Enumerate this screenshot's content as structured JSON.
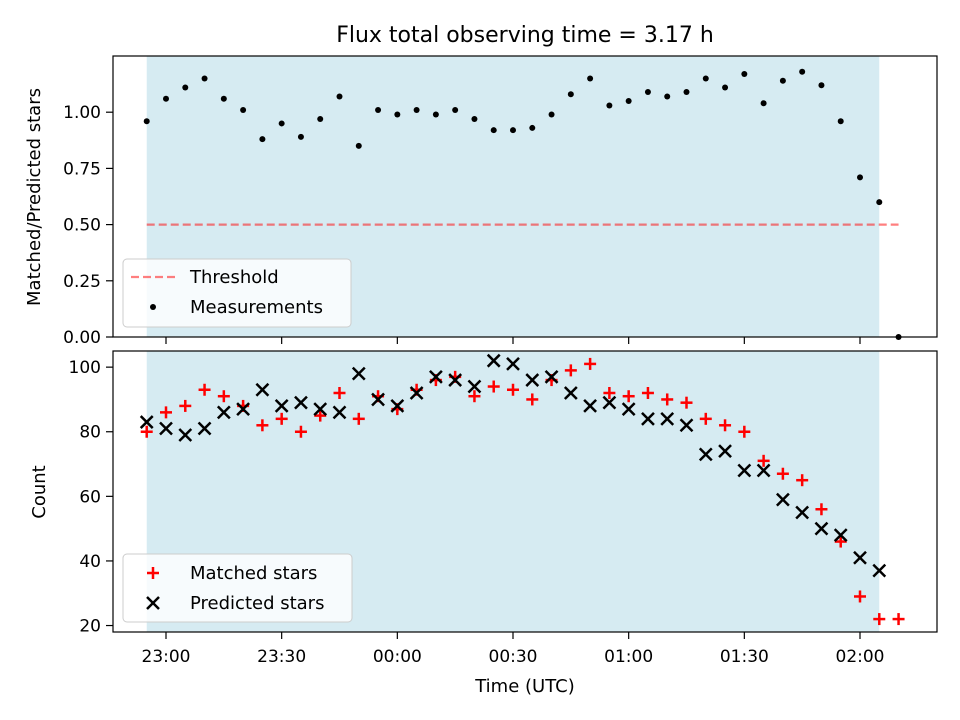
{
  "title": "Flux total observing time = 3.17 h",
  "colors": {
    "shade": "#add8e6",
    "threshold": "#ff0000",
    "matched": "#ff0000",
    "predicted": "#000000",
    "measurement": "#000000"
  },
  "chart_data": [
    {
      "type": "scatter",
      "panel": "top",
      "xlabel": "",
      "ylabel": "Matched/Predicted stars",
      "ylim": [
        0,
        1.25
      ],
      "yticks": [
        0.0,
        0.25,
        0.5,
        0.75,
        1.0
      ],
      "ytick_labels": [
        "0.00",
        "0.25",
        "0.50",
        "0.75",
        "1.00"
      ],
      "shaded_x_range": [
        "22:55",
        "02:05"
      ],
      "threshold": {
        "value": 0.5,
        "x_range": [
          "22:55",
          "02:10"
        ],
        "style": "dashed"
      },
      "legend": {
        "placement": "lower-left",
        "entries": [
          "Threshold",
          "Measurements"
        ]
      },
      "series": [
        {
          "name": "Measurements",
          "marker": "dot",
          "points": [
            [
              "22:55",
              0.96
            ],
            [
              "23:00",
              1.06
            ],
            [
              "23:05",
              1.11
            ],
            [
              "23:10",
              1.15
            ],
            [
              "23:15",
              1.06
            ],
            [
              "23:20",
              1.01
            ],
            [
              "23:25",
              0.88
            ],
            [
              "23:30",
              0.95
            ],
            [
              "23:35",
              0.89
            ],
            [
              "23:40",
              0.97
            ],
            [
              "23:45",
              1.07
            ],
            [
              "23:50",
              0.85
            ],
            [
              "23:55",
              1.01
            ],
            [
              "00:00",
              0.99
            ],
            [
              "00:05",
              1.01
            ],
            [
              "00:10",
              0.99
            ],
            [
              "00:15",
              1.01
            ],
            [
              "00:20",
              0.97
            ],
            [
              "00:25",
              0.92
            ],
            [
              "00:30",
              0.92
            ],
            [
              "00:35",
              0.93
            ],
            [
              "00:40",
              0.99
            ],
            [
              "00:45",
              1.08
            ],
            [
              "00:50",
              1.15
            ],
            [
              "00:55",
              1.03
            ],
            [
              "01:00",
              1.05
            ],
            [
              "01:05",
              1.09
            ],
            [
              "01:10",
              1.07
            ],
            [
              "01:15",
              1.09
            ],
            [
              "01:20",
              1.15
            ],
            [
              "01:25",
              1.11
            ],
            [
              "01:30",
              1.17
            ],
            [
              "01:35",
              1.04
            ],
            [
              "01:40",
              1.14
            ],
            [
              "01:45",
              1.18
            ],
            [
              "01:50",
              1.12
            ],
            [
              "01:55",
              0.96
            ],
            [
              "02:00",
              0.71
            ],
            [
              "02:05",
              0.6
            ],
            [
              "02:10",
              0.0
            ]
          ]
        }
      ]
    },
    {
      "type": "scatter",
      "panel": "bottom",
      "xlabel": "Time (UTC)",
      "ylabel": "Count",
      "ylim": [
        18,
        105
      ],
      "yticks": [
        20,
        40,
        60,
        80,
        100
      ],
      "ytick_labels": [
        "20",
        "40",
        "60",
        "80",
        "100"
      ],
      "xticks": [
        "23:00",
        "23:30",
        "00:00",
        "00:30",
        "01:00",
        "01:30",
        "02:00"
      ],
      "shaded_x_range": [
        "22:55",
        "02:05"
      ],
      "legend": {
        "placement": "lower-left",
        "entries": [
          "Matched stars",
          "Predicted stars"
        ]
      },
      "series": [
        {
          "name": "Matched stars",
          "marker": "plus",
          "points": [
            [
              "22:55",
              80
            ],
            [
              "23:00",
              86
            ],
            [
              "23:05",
              88
            ],
            [
              "23:10",
              93
            ],
            [
              "23:15",
              91
            ],
            [
              "23:20",
              88
            ],
            [
              "23:25",
              82
            ],
            [
              "23:30",
              84
            ],
            [
              "23:35",
              80
            ],
            [
              "23:40",
              85
            ],
            [
              "23:45",
              92
            ],
            [
              "23:50",
              84
            ],
            [
              "23:55",
              91
            ],
            [
              "00:00",
              87
            ],
            [
              "00:05",
              93
            ],
            [
              "00:10",
              96
            ],
            [
              "00:15",
              97
            ],
            [
              "00:20",
              91
            ],
            [
              "00:25",
              94
            ],
            [
              "00:30",
              93
            ],
            [
              "00:35",
              90
            ],
            [
              "00:40",
              96
            ],
            [
              "00:45",
              99
            ],
            [
              "00:50",
              101
            ],
            [
              "00:55",
              92
            ],
            [
              "01:00",
              91
            ],
            [
              "01:05",
              92
            ],
            [
              "01:10",
              90
            ],
            [
              "01:15",
              89
            ],
            [
              "01:20",
              84
            ],
            [
              "01:25",
              82
            ],
            [
              "01:30",
              80
            ],
            [
              "01:35",
              71
            ],
            [
              "01:40",
              67
            ],
            [
              "01:45",
              65
            ],
            [
              "01:50",
              56
            ],
            [
              "01:55",
              46
            ],
            [
              "02:00",
              29
            ],
            [
              "02:05",
              22
            ],
            [
              "02:10",
              22
            ]
          ]
        },
        {
          "name": "Predicted stars",
          "marker": "x",
          "points": [
            [
              "22:55",
              83
            ],
            [
              "23:00",
              81
            ],
            [
              "23:05",
              79
            ],
            [
              "23:10",
              81
            ],
            [
              "23:15",
              86
            ],
            [
              "23:20",
              87
            ],
            [
              "23:25",
              93
            ],
            [
              "23:30",
              88
            ],
            [
              "23:35",
              89
            ],
            [
              "23:40",
              87
            ],
            [
              "23:45",
              86
            ],
            [
              "23:50",
              98
            ],
            [
              "23:55",
              90
            ],
            [
              "00:00",
              88
            ],
            [
              "00:05",
              92
            ],
            [
              "00:10",
              97
            ],
            [
              "00:15",
              96
            ],
            [
              "00:20",
              94
            ],
            [
              "00:25",
              102
            ],
            [
              "00:30",
              101
            ],
            [
              "00:35",
              96
            ],
            [
              "00:40",
              97
            ],
            [
              "00:45",
              92
            ],
            [
              "00:50",
              88
            ],
            [
              "00:55",
              89
            ],
            [
              "01:00",
              87
            ],
            [
              "01:05",
              84
            ],
            [
              "01:10",
              84
            ],
            [
              "01:15",
              82
            ],
            [
              "01:20",
              73
            ],
            [
              "01:25",
              74
            ],
            [
              "01:30",
              68
            ],
            [
              "01:35",
              68
            ],
            [
              "01:40",
              59
            ],
            [
              "01:45",
              55
            ],
            [
              "01:50",
              50
            ],
            [
              "01:55",
              48
            ],
            [
              "02:00",
              41
            ],
            [
              "02:05",
              37
            ]
          ]
        }
      ]
    }
  ]
}
